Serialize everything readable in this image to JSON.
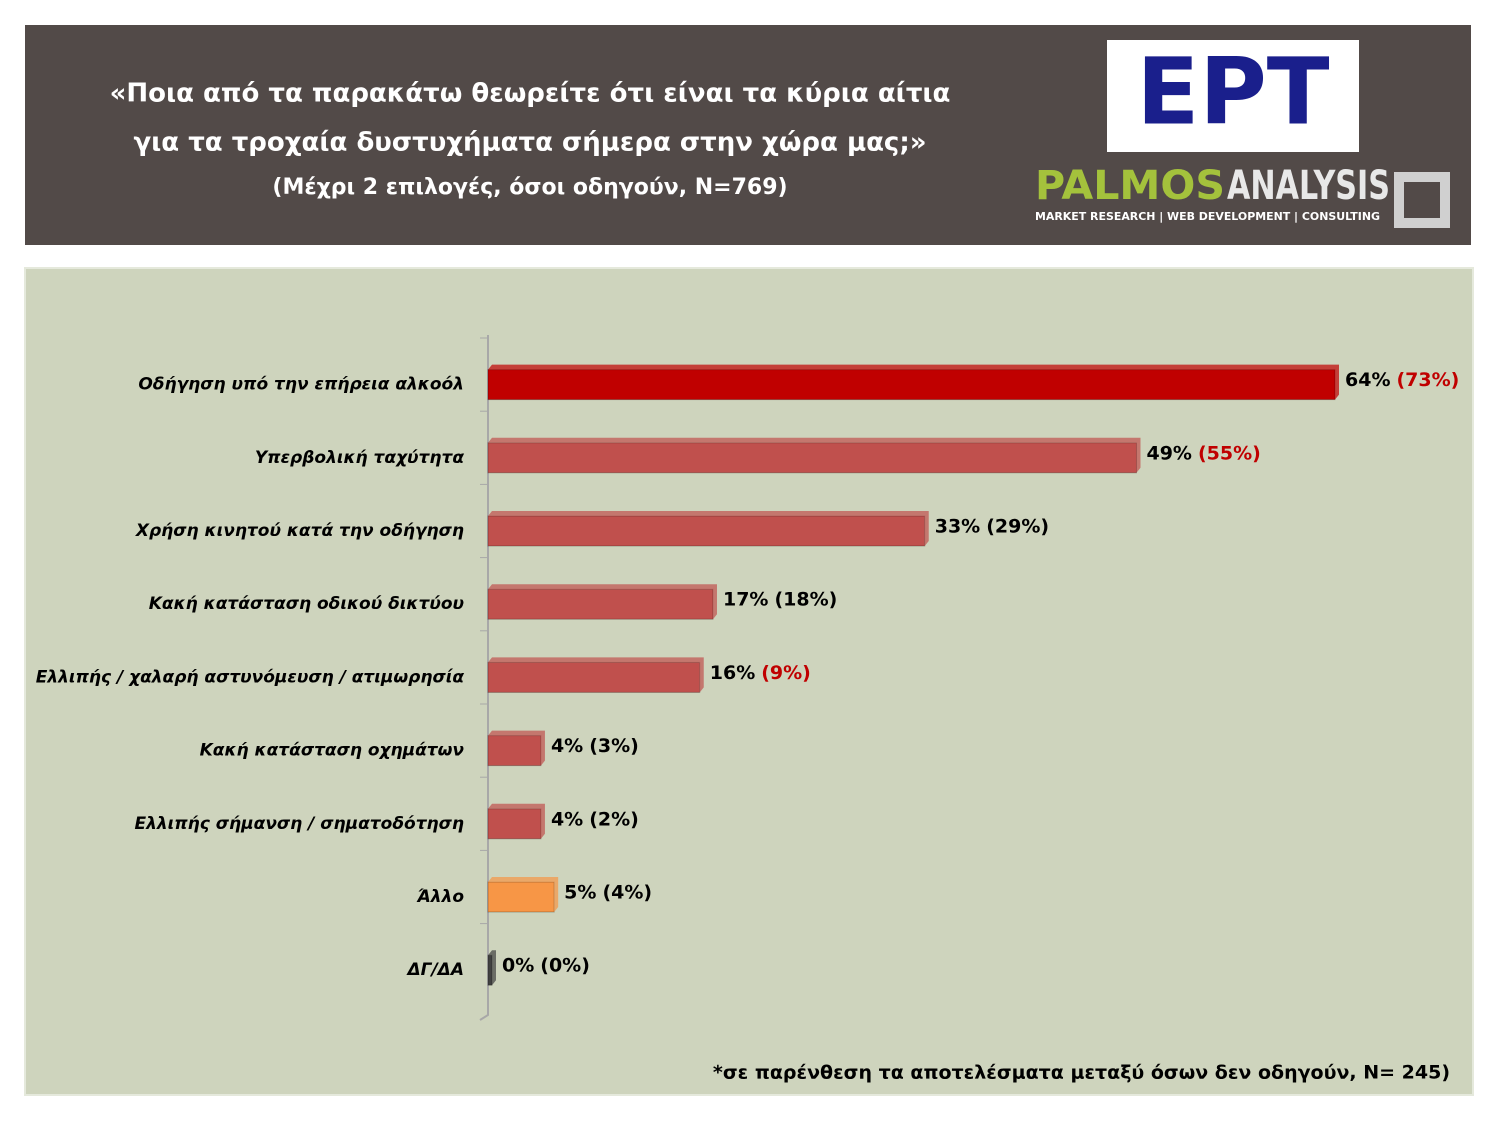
{
  "header": {
    "title_lines": [
      "«Ποια από τα παρακάτω θεωρείτε ότι είναι τα κύρια αίτια",
      "για τα τροχαία δυστυχήματα σήμερα στην χώρα μας;»"
    ],
    "subtitle": "(Μέχρι 2 επιλογές, όσοι οδηγούν, N=769)",
    "logo_ert": "EPT",
    "logo_palmos": "PALMOS",
    "logo_analysis": "ANALYSIS",
    "tagline": "MARKET RESEARCH | WEB DEVELOPMENT | CONSULTING"
  },
  "chart_data": {
    "type": "hbar",
    "categories": [
      "Οδήγηση υπό την επήρεια αλκοόλ",
      "Υπερβολική ταχύτητα",
      "Χρήση κινητού κατά την οδήγηση",
      "Κακή κατάσταση οδικού δικτύου",
      "Ελλιπής / χαλαρή  αστυνόμευση / ατιμωρησία",
      "Κακή κατάσταση οχημάτων",
      "Ελλιπής σήμανση / σηματοδότηση",
      "Άλλο",
      "ΔΓ/ΔΑ"
    ],
    "values": [
      64,
      49,
      33,
      17,
      16,
      4,
      4,
      5,
      0
    ],
    "value_labels": [
      "64%",
      "49%",
      "33%",
      "17%",
      "16%",
      "4%",
      "4%",
      "5%",
      "0%"
    ],
    "colors": [
      "#c00000",
      "#c0504d",
      "#c0504d",
      "#c0504d",
      "#c0504d",
      "#c0504d",
      "#c0504d",
      "#f79646",
      "#404040"
    ],
    "secondary_values": [
      73,
      55,
      29,
      18,
      9,
      3,
      2,
      4,
      0
    ],
    "secondary_value_labels": [
      "(73%)",
      "(55%)",
      "(29%)",
      "(18%)",
      "(9%)",
      "(3%)",
      "(2%)",
      "(4%)",
      "(0%)"
    ],
    "secondary_label_colors": [
      "#c00000",
      "#c00000",
      "#000000",
      "#000000",
      "#c00000",
      "#000000",
      "#000000",
      "#000000",
      "#000000"
    ],
    "xlim": [
      0,
      72
    ]
  },
  "footnote": "*σε παρένθεση τα αποτελέσματα μεταξύ όσων δεν οδηγούν, N= 245)"
}
